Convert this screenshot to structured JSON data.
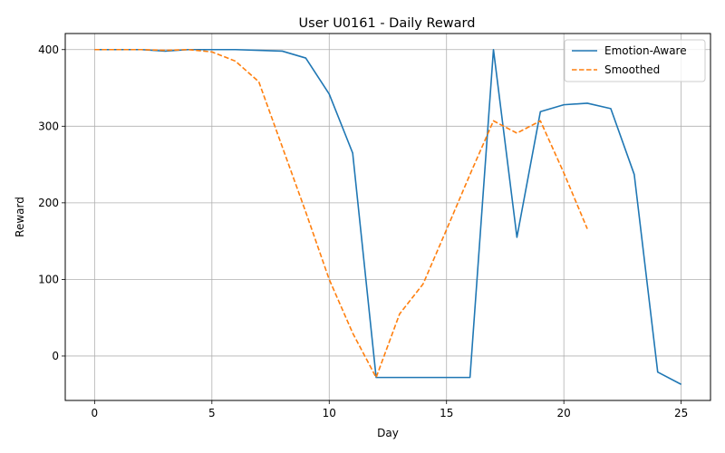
{
  "chart_data": {
    "type": "line",
    "title": "User U0161 - Daily Reward",
    "xlabel": "Day",
    "ylabel": "Reward",
    "xlim": [
      -1.25,
      26.25
    ],
    "ylim": [
      -58,
      421
    ],
    "xticks": [
      0,
      5,
      10,
      15,
      20,
      25
    ],
    "yticks": [
      0,
      100,
      200,
      300,
      400
    ],
    "grid": true,
    "legend_position": "top-right",
    "series": [
      {
        "name": "Emotion-Aware",
        "color": "#1f77b4",
        "style": "solid",
        "x": [
          0,
          1,
          2,
          3,
          4,
          5,
          6,
          7,
          8,
          9,
          10,
          11,
          12,
          13,
          14,
          15,
          16,
          17,
          18,
          19,
          20,
          21,
          22,
          23,
          24,
          25
        ],
        "y": [
          400,
          400,
          400,
          398,
          400,
          400,
          400,
          399,
          398,
          389,
          342,
          265,
          -28,
          -28,
          -28,
          -28,
          -28,
          400,
          155,
          319,
          328,
          330,
          323,
          237,
          -21,
          -37
        ]
      },
      {
        "name": "Smoothed",
        "color": "#ff7f0e",
        "style": "dashed",
        "x": [
          0,
          1,
          2,
          3,
          4,
          5,
          6,
          7,
          8,
          9,
          10,
          11,
          12,
          13,
          14,
          15,
          16,
          17,
          18,
          19,
          20,
          21
        ],
        "y": [
          400,
          400,
          400,
          399,
          400,
          397,
          385,
          358,
          273,
          188,
          100,
          30,
          -28,
          55,
          94,
          165,
          237,
          307,
          291,
          307,
          239,
          166
        ]
      }
    ]
  }
}
